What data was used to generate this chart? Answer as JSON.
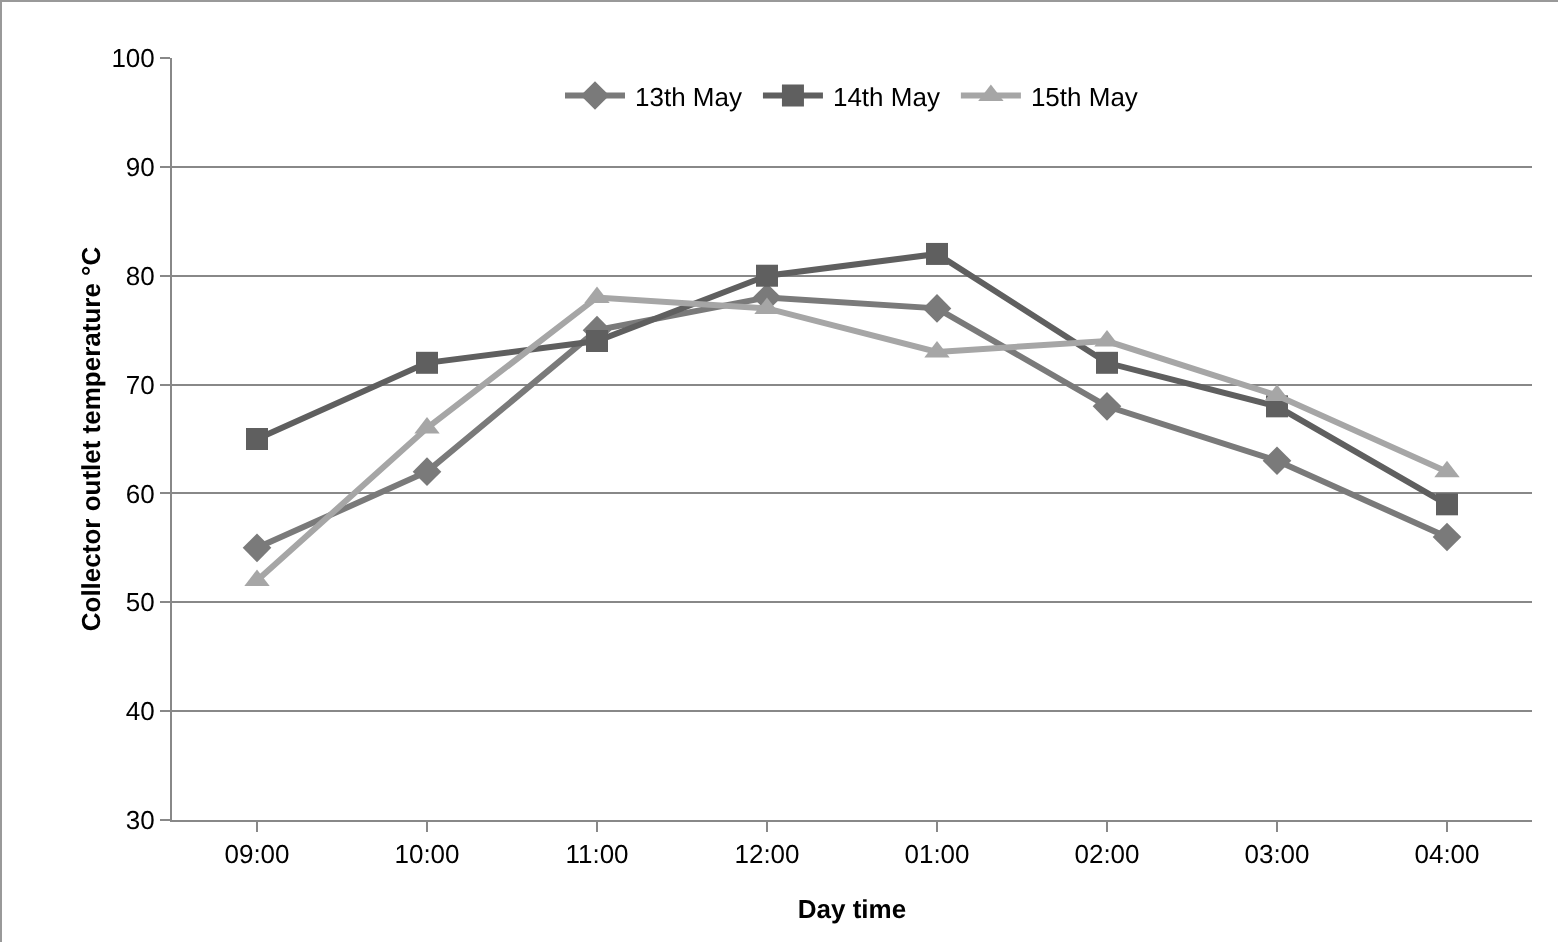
{
  "chart_data": {
    "type": "line",
    "xlabel": "Day time",
    "ylabel": "Collector outlet temperature °C",
    "categories": [
      "09:00",
      "10:00",
      "11:00",
      "12:00",
      "01:00",
      "02:00",
      "03:00",
      "04:00"
    ],
    "series": [
      {
        "name": "13th May",
        "color": "#7a7a7a",
        "marker": "diamond",
        "values": [
          55,
          62,
          75,
          78,
          77,
          68,
          63,
          56
        ]
      },
      {
        "name": "14th May",
        "color": "#5f5f5f",
        "marker": "square",
        "values": [
          65,
          72,
          74,
          80,
          82,
          72,
          68,
          59
        ]
      },
      {
        "name": "15th May",
        "color": "#a6a6a6",
        "marker": "triangle",
        "values": [
          52,
          66,
          78,
          77,
          73,
          74,
          69,
          62
        ]
      }
    ],
    "ylim": [
      30,
      100
    ],
    "yticks": [
      30,
      40,
      50,
      60,
      70,
      80,
      90,
      100
    ],
    "grid": "y",
    "legend": "top",
    "line_style": "solid"
  }
}
